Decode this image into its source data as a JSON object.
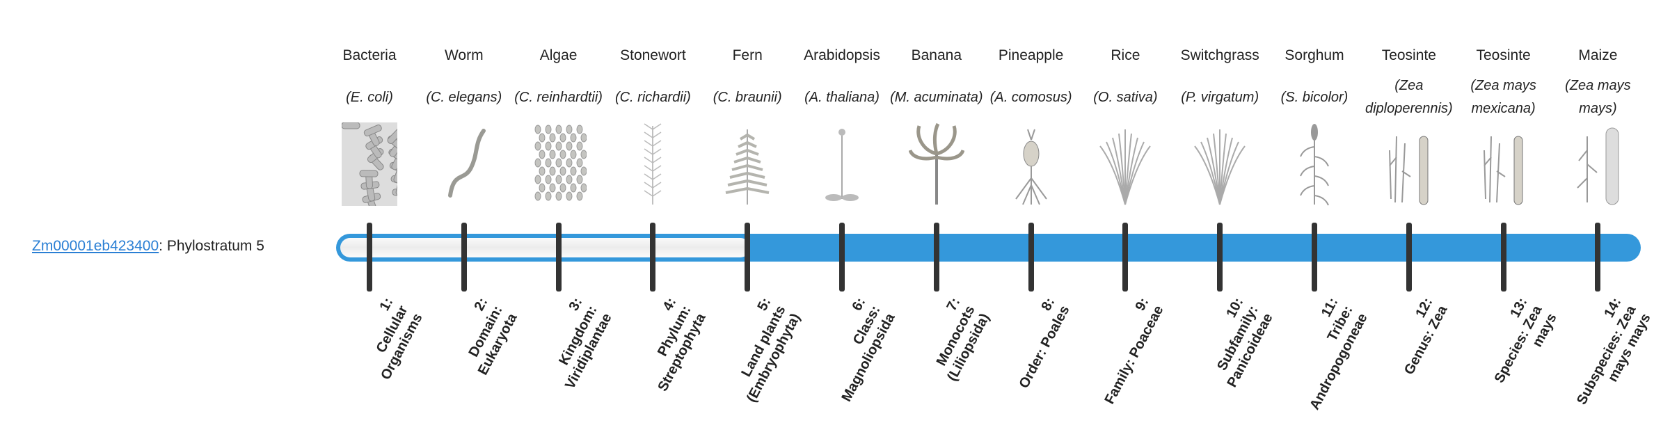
{
  "gene": {
    "id": "Zm00001eb423400",
    "suffix": ": Phylostratum 5",
    "phylostratum": 5
  },
  "colors": {
    "bar": "#3498db",
    "tick": "#333333",
    "link": "#2a7fd4"
  },
  "strata": [
    {
      "name": "Bacteria",
      "species": "(E. coli)",
      "icon": "bacteria-icon",
      "rank_num": "1:",
      "rank": "Cellular Organisms"
    },
    {
      "name": "Worm",
      "species": "(C. elegans)",
      "icon": "worm-icon",
      "rank_num": "2:",
      "rank": "Domain: Eukaryota"
    },
    {
      "name": "Algae",
      "species": "(C. reinhardtii)",
      "icon": "algae-icon",
      "rank_num": "3:",
      "rank": "Kingdom: Viridiplantae"
    },
    {
      "name": "Stonewort",
      "species": "(C. richardii)",
      "icon": "stonewort-icon",
      "rank_num": "4:",
      "rank": "Phylum: Streptophyta"
    },
    {
      "name": "Fern",
      "species": "(C. braunii)",
      "icon": "fern-icon",
      "rank_num": "5:",
      "rank": "Land plants (Embryophyta)"
    },
    {
      "name": "Arabidopsis",
      "species": "(A. thaliana)",
      "icon": "arabidopsis-icon",
      "rank_num": "6:",
      "rank": "Class: Magnoliopsida"
    },
    {
      "name": "Banana",
      "species": "(M. acuminata)",
      "icon": "banana-icon",
      "rank_num": "7:",
      "rank": "Monocots (Liliopsida)"
    },
    {
      "name": "Pineapple",
      "species": "(A. comosus)",
      "icon": "pineapple-icon",
      "rank_num": "8:",
      "rank": "Order: Poales"
    },
    {
      "name": "Rice",
      "species": "(O. sativa)",
      "icon": "rice-icon",
      "rank_num": "9:",
      "rank": "Family: Poaceae"
    },
    {
      "name": "Switchgrass",
      "species": "(P. virgatum)",
      "icon": "switchgrass-icon",
      "rank_num": "10:",
      "rank": "Subfamily: Panicoideae"
    },
    {
      "name": "Sorghum",
      "species": "(S. bicolor)",
      "icon": "sorghum-icon",
      "rank_num": "11:",
      "rank": "Tribe: Andropogoneae"
    },
    {
      "name": "Teosinte",
      "species": "(Zea diploperennis)",
      "icon": "teosinte-icon",
      "rank_num": "12:",
      "rank": "Genus: Zea"
    },
    {
      "name": "Teosinte",
      "species": "(Zea mays mexicana)",
      "icon": "teosinte-icon",
      "rank_num": "13:",
      "rank": "Species: Zea mays"
    },
    {
      "name": "Maize",
      "species": "(Zea mays mays)",
      "icon": "maize-icon",
      "rank_num": "14:",
      "rank": "Subspecies: Zea mays mays"
    }
  ]
}
